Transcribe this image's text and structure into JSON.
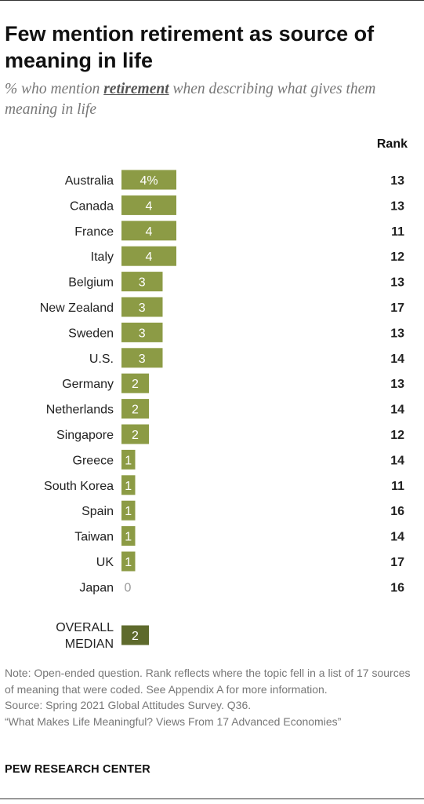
{
  "title": "Few mention retirement as source of meaning in life",
  "subtitle": {
    "prefix": "% who mention ",
    "emphasis": "retirement",
    "suffix": " when describing what gives them meaning in life"
  },
  "rank_header": "Rank",
  "colors": {
    "bar": "#8c9b45",
    "median_bar": "#5e6a2c",
    "zero_text": "#999999"
  },
  "chart_data": {
    "type": "bar",
    "orientation": "horizontal",
    "categories": [
      "Australia",
      "Canada",
      "France",
      "Italy",
      "Belgium",
      "New Zealand",
      "Sweden",
      "U.S.",
      "Germany",
      "Netherlands",
      "Singapore",
      "Greece",
      "South Korea",
      "Spain",
      "Taiwan",
      "UK",
      "Japan"
    ],
    "values": [
      4,
      4,
      4,
      4,
      3,
      3,
      3,
      3,
      2,
      2,
      2,
      1,
      1,
      1,
      1,
      1,
      0
    ],
    "value_labels": [
      "4%",
      "4",
      "4",
      "4",
      "3",
      "3",
      "3",
      "3",
      "2",
      "2",
      "2",
      "1",
      "1",
      "1",
      "1",
      "1",
      "0"
    ],
    "ranks": [
      "13",
      "13",
      "11",
      "12",
      "13",
      "17",
      "13",
      "14",
      "13",
      "14",
      "12",
      "14",
      "11",
      "16",
      "14",
      "17",
      "16"
    ],
    "median": {
      "label_line1": "OVERALL",
      "label_line2": "MEDIAN",
      "value": 2,
      "value_label": "2"
    }
  },
  "note": "Note: Open-ended question.  Rank reflects where the topic fell in a list of 17 sources of meaning that were coded. See Appendix A for more information.",
  "source": "Source: Spring 2021 Global Attitudes Survey. Q36.",
  "report": "“What Makes Life Meaningful? Views From 17 Advanced Economies”",
  "brand": "PEW RESEARCH CENTER"
}
